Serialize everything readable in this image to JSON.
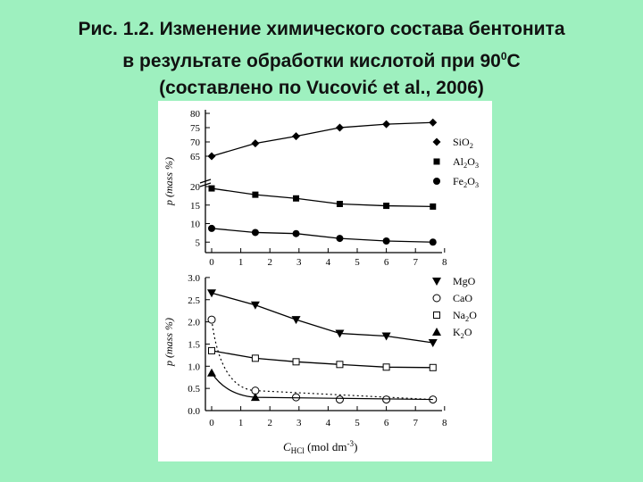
{
  "title": {
    "line1": "Рис. 1.2. Изменение химического состава бентонита",
    "line2": "в результате обработки кислотой при 90",
    "line2_sup": "0",
    "line2_end": "С",
    "line3": "(составлено по Vucović et al., 2006)"
  },
  "chart_data": [
    {
      "type": "scatter",
      "ylabel": "p (mass %)",
      "x": [
        0,
        1.5,
        2.9,
        4.4,
        6.0,
        7.6
      ],
      "xticks": [
        "0",
        "1",
        "2",
        "3",
        "4",
        "5",
        "6",
        "7",
        "8"
      ],
      "yticks": [
        "5",
        "10",
        "15",
        "20",
        "65",
        "70",
        "75",
        "80"
      ],
      "axis_break": true,
      "series": [
        {
          "name": "SiO2",
          "label": "SiO",
          "sub": "2",
          "marker": "diamond",
          "values": [
            65,
            69.5,
            72,
            75,
            76.2,
            76.8
          ]
        },
        {
          "name": "Al2O3",
          "label": "Al",
          "sub": "2",
          "label2": "O",
          "sub2": "3",
          "marker": "square",
          "values": [
            19.5,
            17.8,
            16.8,
            15.3,
            14.8,
            14.6
          ]
        },
        {
          "name": "Fe2O3",
          "label": "Fe",
          "sub": "2",
          "label2": "O",
          "sub2": "3",
          "marker": "circle",
          "values": [
            8.7,
            7.6,
            7.3,
            6.0,
            5.3,
            5.0
          ]
        }
      ]
    },
    {
      "type": "scatter",
      "ylabel": "p (mass %)",
      "xlabel": "C",
      "xlabel_sub": "HCl",
      "xlabel_end": " (mol dm",
      "xlabel_sup": "-3",
      "xlabel_close": ")",
      "xlim": [
        0,
        8
      ],
      "ylim": [
        0,
        3
      ],
      "xticks": [
        "0",
        "1",
        "2",
        "3",
        "4",
        "5",
        "6",
        "7",
        "8"
      ],
      "yticks": [
        "0.0",
        "0.5",
        "1.0",
        "1.5",
        "2.0",
        "2.5",
        "3.0"
      ],
      "series": [
        {
          "name": "MgO",
          "label": "MgO",
          "marker": "triangle-down",
          "x": [
            0,
            1.5,
            2.9,
            4.4,
            6.0,
            7.6
          ],
          "values": [
            2.65,
            2.38,
            2.05,
            1.74,
            1.68,
            1.53
          ]
        },
        {
          "name": "CaO",
          "label": "CaO",
          "marker": "open-circle",
          "x": [
            0,
            1.5,
            2.9,
            4.4,
            6.0,
            7.6
          ],
          "values": [
            2.05,
            0.45,
            0.3,
            0.25,
            0.25,
            0.25
          ]
        },
        {
          "name": "Na2O",
          "label": "Na",
          "sub": "2",
          "label2": "O",
          "marker": "open-square",
          "x": [
            0,
            1.5,
            2.9,
            4.4,
            6.0,
            7.6
          ],
          "values": [
            1.35,
            1.18,
            1.1,
            1.04,
            0.98,
            0.97
          ]
        },
        {
          "name": "K2O",
          "label": "K",
          "sub": "2",
          "label2": "O",
          "marker": "triangle-up",
          "x": [
            0,
            1.5
          ],
          "values": [
            0.85,
            0.3
          ]
        }
      ]
    }
  ]
}
